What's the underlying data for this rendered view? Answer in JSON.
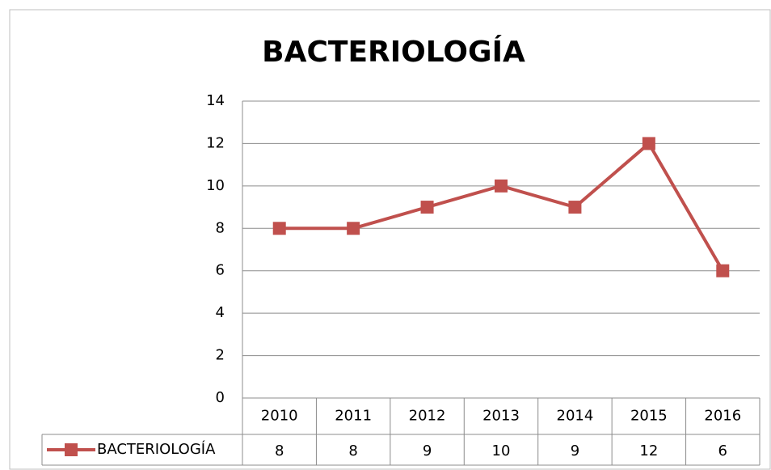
{
  "chart_data": {
    "type": "line",
    "title": "BACTERIOLOGÍA",
    "categories": [
      "2010",
      "2011",
      "2012",
      "2013",
      "2014",
      "2015",
      "2016"
    ],
    "series": [
      {
        "name": "BACTERIOLOGÍA",
        "color": "#c0504d",
        "values": [
          8,
          8,
          9,
          10,
          9,
          12,
          6
        ]
      }
    ],
    "ylim": [
      0,
      14
    ],
    "yticks": [
      0,
      2,
      4,
      6,
      8,
      10,
      12,
      14
    ],
    "grid": true,
    "data_table": true
  }
}
